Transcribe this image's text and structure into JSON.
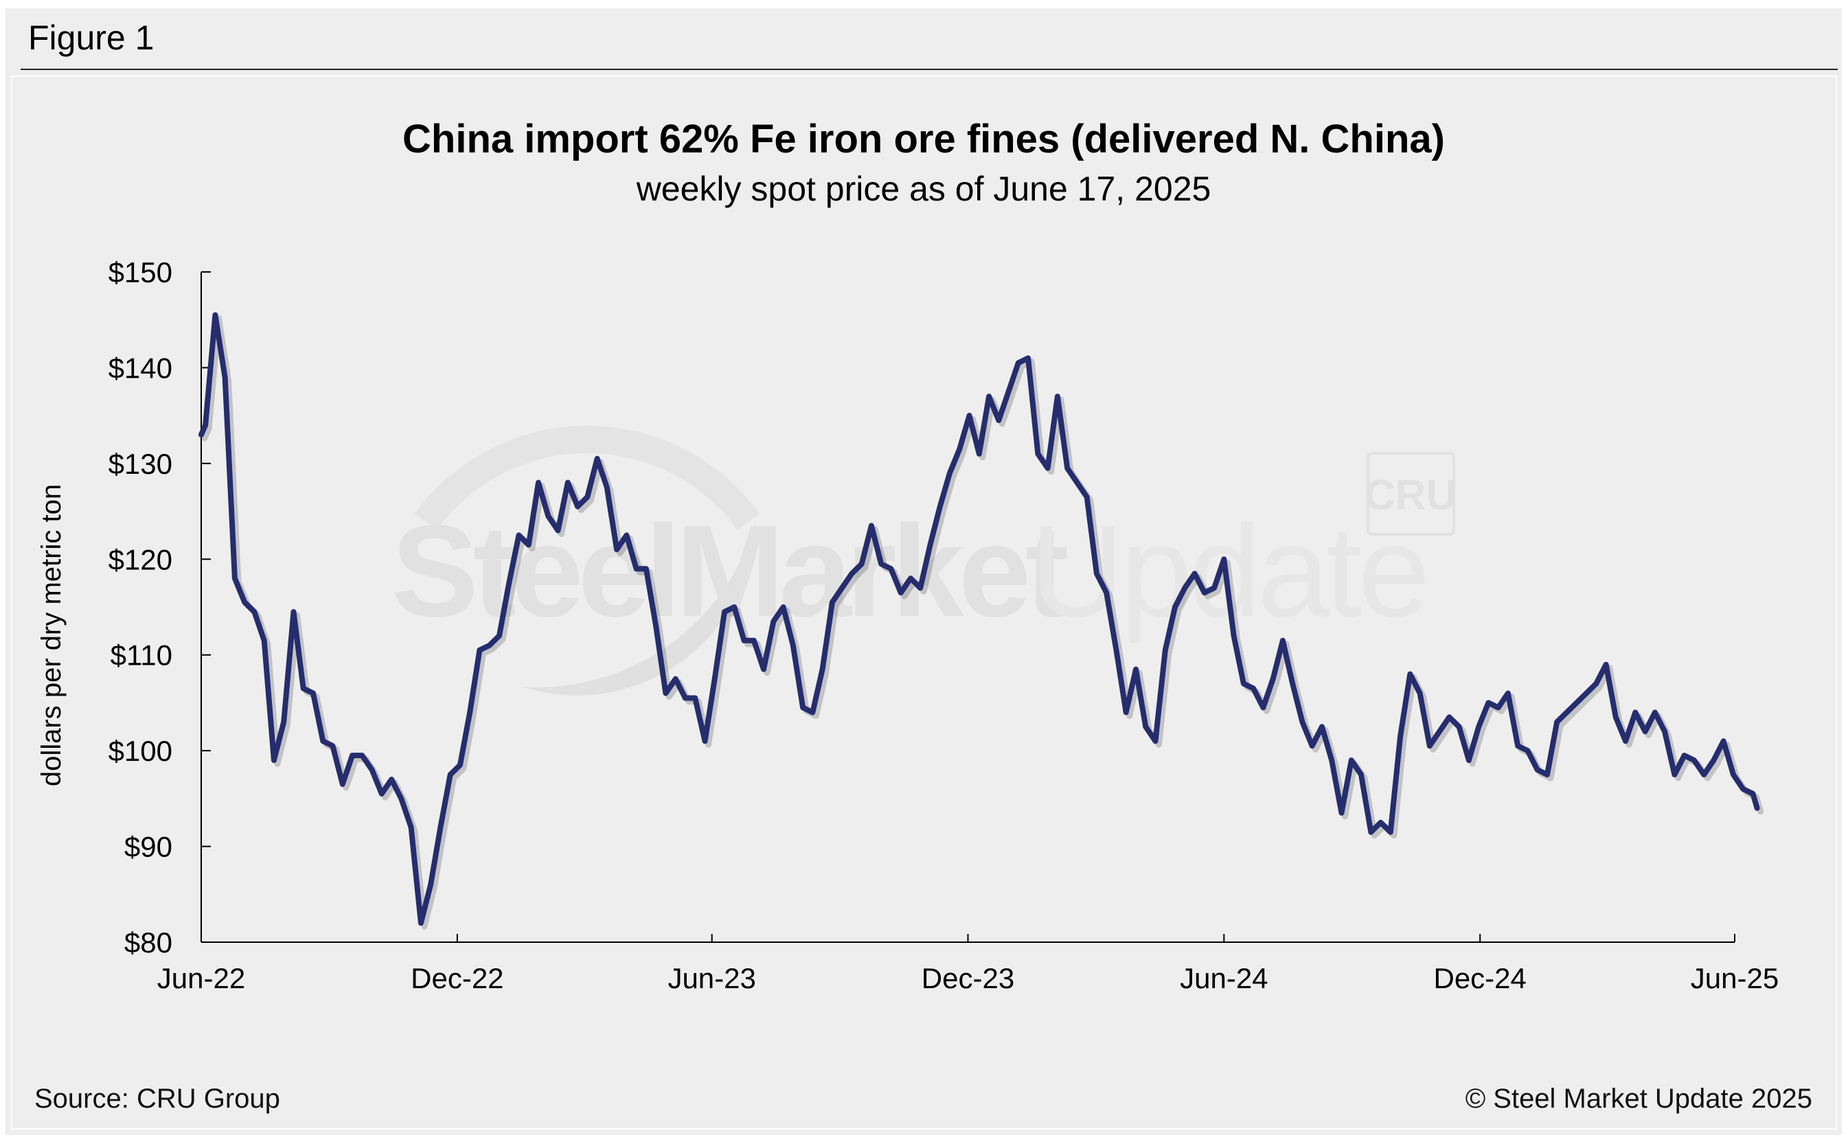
{
  "figure_label": "Figure 1",
  "footer": {
    "source": "Source: CRU Group",
    "copyright": "© Steel Market Update 2025"
  },
  "watermark": {
    "text_bold": "SteelMarket",
    "text_light": "Update",
    "badge": "CRU"
  },
  "colors": {
    "line": "#252d6e",
    "background": "#eeeeee",
    "axis": "#000000"
  },
  "chart_data": {
    "type": "line",
    "title": "China import 62% Fe iron ore fines (delivered N. China)",
    "subtitle": "weekly spot price as of June 17, 2025",
    "ylabel": "dollars per dry metric ton",
    "xlabel": "",
    "ylim": [
      80,
      150
    ],
    "y_ticks": [
      80,
      90,
      100,
      110,
      120,
      130,
      140,
      150
    ],
    "y_tick_labels": [
      "$80",
      "$90",
      "$100",
      "$110",
      "$120",
      "$130",
      "$140",
      "$150"
    ],
    "x_tick_labels": [
      "Jun-22",
      "Dec-22",
      "Jun-23",
      "Dec-23",
      "Jun-24",
      "Dec-24",
      "Jun-25"
    ],
    "x_tick_dates": [
      "2022-06-01",
      "2022-12-01",
      "2023-06-01",
      "2023-12-01",
      "2024-06-01",
      "2024-12-01",
      "2025-06-01"
    ],
    "grid": false,
    "legend": "none",
    "series": [
      {
        "name": "",
        "x": [
          "2022-06-01",
          "2022-06-04",
          "2022-06-11",
          "2022-06-18",
          "2022-06-25",
          "2022-07-02",
          "2022-07-09",
          "2022-07-16",
          "2022-07-23",
          "2022-07-30",
          "2022-08-06",
          "2022-08-13",
          "2022-08-20",
          "2022-08-27",
          "2022-09-03",
          "2022-09-10",
          "2022-09-17",
          "2022-09-24",
          "2022-10-01",
          "2022-10-08",
          "2022-10-15",
          "2022-10-22",
          "2022-10-29",
          "2022-11-05",
          "2022-11-12",
          "2022-11-19",
          "2022-11-26",
          "2022-12-03",
          "2022-12-10",
          "2022-12-17",
          "2022-12-24",
          "2022-12-31",
          "2023-01-07",
          "2023-01-14",
          "2023-01-21",
          "2023-01-28",
          "2023-02-04",
          "2023-02-11",
          "2023-02-18",
          "2023-02-25",
          "2023-03-04",
          "2023-03-11",
          "2023-03-18",
          "2023-03-25",
          "2023-04-01",
          "2023-04-08",
          "2023-04-15",
          "2023-04-22",
          "2023-04-29",
          "2023-05-06",
          "2023-05-13",
          "2023-05-20",
          "2023-05-27",
          "2023-06-03",
          "2023-06-10",
          "2023-06-17",
          "2023-06-24",
          "2023-07-01",
          "2023-07-08",
          "2023-07-15",
          "2023-07-22",
          "2023-07-29",
          "2023-08-05",
          "2023-08-12",
          "2023-08-19",
          "2023-08-26",
          "2023-09-02",
          "2023-09-09",
          "2023-09-16",
          "2023-09-23",
          "2023-09-30",
          "2023-10-07",
          "2023-10-14",
          "2023-10-21",
          "2023-10-28",
          "2023-11-04",
          "2023-11-11",
          "2023-11-18",
          "2023-11-25",
          "2023-12-02",
          "2023-12-09",
          "2023-12-16",
          "2023-12-23",
          "2023-12-30",
          "2024-01-06",
          "2024-01-13",
          "2024-01-20",
          "2024-01-27",
          "2024-02-03",
          "2024-02-10",
          "2024-02-17",
          "2024-02-24",
          "2024-03-02",
          "2024-03-09",
          "2024-03-16",
          "2024-03-23",
          "2024-03-30",
          "2024-04-06",
          "2024-04-13",
          "2024-04-20",
          "2024-04-27",
          "2024-05-04",
          "2024-05-11",
          "2024-05-18",
          "2024-05-25",
          "2024-06-01",
          "2024-06-08",
          "2024-06-15",
          "2024-06-22",
          "2024-06-29",
          "2024-07-06",
          "2024-07-13",
          "2024-07-20",
          "2024-07-27",
          "2024-08-03",
          "2024-08-10",
          "2024-08-17",
          "2024-08-24",
          "2024-08-31",
          "2024-09-07",
          "2024-09-14",
          "2024-09-21",
          "2024-09-28",
          "2024-10-05",
          "2024-10-12",
          "2024-10-19",
          "2024-10-26",
          "2024-11-02",
          "2024-11-09",
          "2024-11-16",
          "2024-11-23",
          "2024-11-30",
          "2024-12-07",
          "2024-12-14",
          "2024-12-21",
          "2024-12-28",
          "2025-01-04",
          "2025-01-11",
          "2025-01-18",
          "2025-01-25",
          "2025-02-01",
          "2025-02-08",
          "2025-02-15",
          "2025-02-22",
          "2025-03-01",
          "2025-03-08",
          "2025-03-15",
          "2025-03-22",
          "2025-03-29",
          "2025-04-05",
          "2025-04-12",
          "2025-04-19",
          "2025-04-26",
          "2025-05-03",
          "2025-05-10",
          "2025-05-17",
          "2025-05-24",
          "2025-05-31",
          "2025-06-07",
          "2025-06-14",
          "2025-06-17"
        ],
        "values": [
          133,
          134,
          145.5,
          139,
          118,
          115.5,
          114.5,
          111.5,
          99,
          103,
          114.5,
          106.5,
          106,
          101,
          100.5,
          96.5,
          99.5,
          99.5,
          98,
          95.5,
          97,
          95,
          92,
          82,
          86,
          92,
          97.5,
          98.5,
          104,
          110.5,
          111,
          112,
          117.5,
          122.5,
          121.5,
          128,
          124.5,
          123,
          128,
          125.5,
          126.5,
          130.5,
          127.5,
          121,
          122.5,
          119,
          119,
          113,
          106,
          107.5,
          105.5,
          105.5,
          101,
          107.5,
          114.5,
          115,
          111.5,
          111.5,
          108.5,
          113.5,
          115,
          111,
          104.5,
          104,
          108.5,
          115.5,
          117,
          118.5,
          119.5,
          123.5,
          119.5,
          119,
          116.5,
          118,
          117,
          121.5,
          125.5,
          129,
          131.5,
          135,
          131,
          137,
          134.5,
          137.5,
          140.5,
          141,
          131,
          129.5,
          137,
          129.5,
          128,
          126.5,
          118.5,
          116.5,
          110.5,
          104,
          108.5,
          102.5,
          101,
          110.5,
          115,
          117,
          118.5,
          116.5,
          117,
          120,
          112,
          107,
          106.5,
          104.5,
          107.5,
          111.5,
          107,
          103,
          100.5,
          102.5,
          99,
          93.5,
          99,
          97.5,
          91.5,
          92.5,
          91.5,
          101.5,
          108,
          106,
          100.5,
          102,
          103.5,
          102.5,
          99,
          102.5,
          105,
          104.5,
          106,
          100.5,
          100,
          98,
          97.5,
          103,
          104,
          105,
          106,
          107,
          109,
          103.5,
          101,
          104,
          102,
          104,
          102,
          97.5,
          99.5,
          99,
          97.5,
          99,
          101,
          97.5,
          96,
          95.5,
          94
        ]
      }
    ]
  }
}
